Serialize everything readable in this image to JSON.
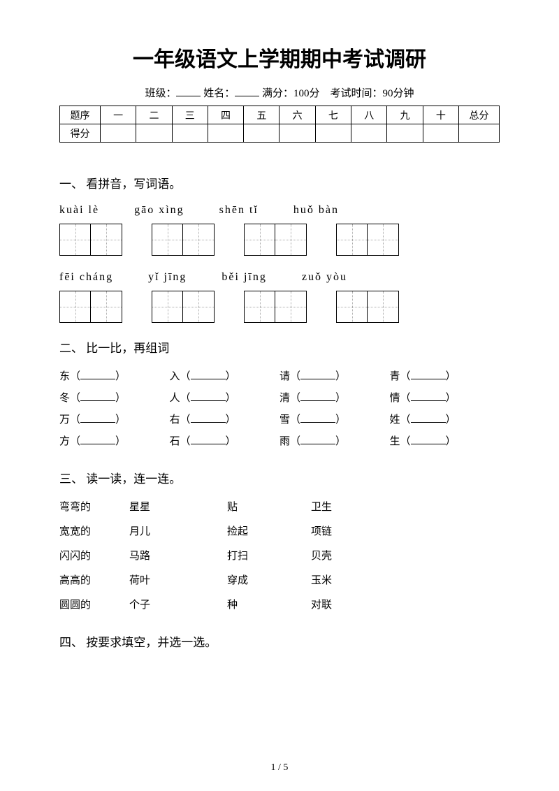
{
  "title": "一年级语文上学期期中考试调研",
  "subtitle": {
    "class_label": "班级：",
    "name_label": "姓名：",
    "full_score": "满分：100分",
    "exam_time": "考试时间：90分钟"
  },
  "score_table": {
    "header_label": "题序",
    "score_label": "得分",
    "columns": [
      "一",
      "二",
      "三",
      "四",
      "五",
      "六",
      "七",
      "八",
      "九",
      "十"
    ],
    "total_label": "总分"
  },
  "section1": {
    "heading": "一、 看拼音，写词语。",
    "row1_pinyin": [
      "kuài  lè",
      "gāo xìng",
      "shēn tǐ",
      "huǒ bàn"
    ],
    "row2_pinyin": [
      "fēi  cháng",
      "yǐ  jīng",
      "běi jīng",
      "zuǒ yòu"
    ]
  },
  "section2": {
    "heading": "二、 比一比，再组词",
    "items": [
      "东",
      "入",
      "请",
      "青",
      "冬",
      "人",
      "清",
      "情",
      "万",
      "右",
      "雪",
      "姓",
      "方",
      "石",
      "雨",
      "生"
    ]
  },
  "section3": {
    "heading": "三、 读一读，连一连。",
    "rows": [
      [
        "弯弯的",
        "星星",
        "贴",
        "卫生"
      ],
      [
        "宽宽的",
        "月儿",
        "捡起",
        "项链"
      ],
      [
        "闪闪的",
        "马路",
        "打扫",
        "贝壳"
      ],
      [
        "高高的",
        "荷叶",
        "穿成",
        "玉米"
      ],
      [
        "圆圆的",
        "个子",
        "种",
        "对联"
      ]
    ]
  },
  "section4": {
    "heading": "四、 按要求填空，并选一选。"
  },
  "footer": "1 / 5",
  "colors": {
    "text": "#000000",
    "background": "#ffffff",
    "dotted": "#aaaaaa"
  }
}
